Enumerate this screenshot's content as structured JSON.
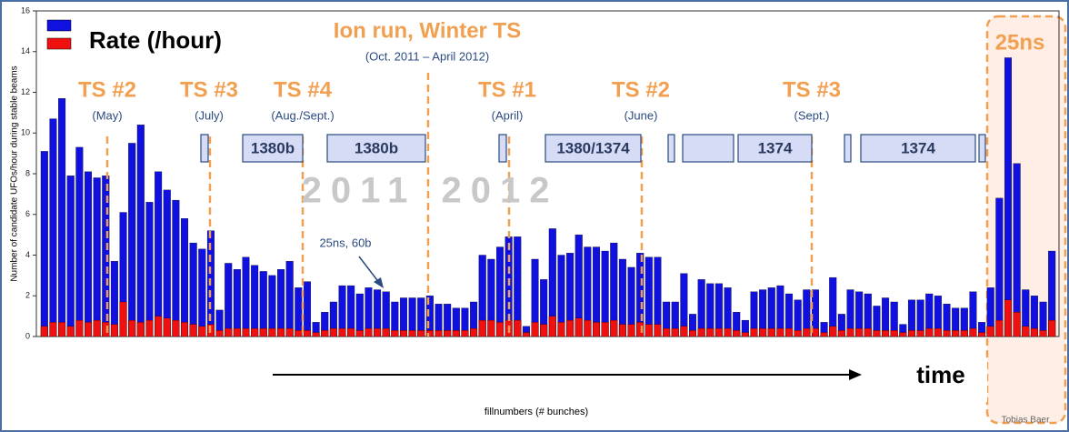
{
  "chart_data": {
    "type": "bar",
    "y_label": "Number of candidate UFOs/hour during stable beams",
    "x_label": "fillnumbers (# bunches)",
    "ylim": [
      0,
      16
    ],
    "yticks": [
      0,
      2,
      4,
      6,
      8,
      10,
      12,
      14,
      16
    ],
    "series": [
      {
        "name": "Rate (/hour)",
        "color": "#1010e0",
        "values": [
          9.1,
          10.7,
          11.7,
          7.9,
          9.3,
          8.1,
          7.8,
          7.9,
          3.7,
          6.1,
          9.5,
          10.4,
          6.6,
          8.1,
          7.2,
          6.7,
          5.8,
          4.6,
          4.3,
          5.2,
          1.3,
          3.6,
          3.3,
          3.9,
          3.5,
          3.2,
          3.0,
          3.3,
          3.7,
          2.4,
          2.7,
          0.7,
          1.2,
          1.7,
          2.5,
          2.5,
          2.1,
          2.4,
          2.3,
          2.2,
          1.7,
          1.9,
          1.9,
          1.9,
          2.0,
          1.6,
          1.6,
          1.4,
          1.4,
          1.7,
          4.0,
          3.8,
          4.4,
          4.9,
          4.9,
          0.5,
          3.8,
          2.8,
          5.3,
          4.0,
          4.1,
          5.0,
          4.4,
          4.4,
          4.2,
          4.6,
          3.8,
          3.4,
          4.1,
          3.9,
          3.9,
          1.7,
          1.7,
          3.1,
          1.1,
          2.8,
          2.6,
          2.6,
          2.4,
          1.2,
          0.8,
          2.2,
          2.3,
          2.4,
          2.5,
          2.1,
          1.8,
          2.3,
          2.3,
          0.7,
          2.9,
          1.1,
          2.3,
          2.2,
          2.1,
          1.5,
          1.9,
          1.7,
          0.6,
          1.8,
          1.8,
          2.1,
          2.0,
          1.6,
          1.4,
          1.4,
          2.2,
          0.7,
          2.4,
          6.8,
          13.7,
          8.5,
          2.3,
          2.0,
          1.7,
          4.2
        ]
      },
      {
        "color": "#f01010",
        "values": [
          0.5,
          0.7,
          0.7,
          0.5,
          0.8,
          0.7,
          0.8,
          0.7,
          0.6,
          1.7,
          0.8,
          0.7,
          0.8,
          1.0,
          0.9,
          0.8,
          0.7,
          0.6,
          0.5,
          0.6,
          0.3,
          0.4,
          0.4,
          0.4,
          0.4,
          0.4,
          0.4,
          0.4,
          0.4,
          0.3,
          0.3,
          0.2,
          0.3,
          0.4,
          0.4,
          0.4,
          0.3,
          0.4,
          0.4,
          0.4,
          0.3,
          0.3,
          0.3,
          0.3,
          0.3,
          0.3,
          0.3,
          0.3,
          0.3,
          0.4,
          0.8,
          0.8,
          0.7,
          0.8,
          0.8,
          0.2,
          0.7,
          0.6,
          1.0,
          0.7,
          0.8,
          0.9,
          0.8,
          0.7,
          0.7,
          0.8,
          0.6,
          0.6,
          0.7,
          0.6,
          0.6,
          0.4,
          0.4,
          0.5,
          0.3,
          0.4,
          0.4,
          0.4,
          0.4,
          0.3,
          0.2,
          0.4,
          0.4,
          0.4,
          0.4,
          0.4,
          0.3,
          0.4,
          0.4,
          0.2,
          0.5,
          0.3,
          0.4,
          0.4,
          0.4,
          0.3,
          0.3,
          0.3,
          0.2,
          0.3,
          0.3,
          0.4,
          0.4,
          0.3,
          0.3,
          0.3,
          0.4,
          0.2,
          0.5,
          0.8,
          1.8,
          1.2,
          0.5,
          0.4,
          0.3,
          0.8
        ]
      }
    ],
    "annotations": [
      "Ion run, Winter TS",
      "(Oct. 2011 – April 2012)",
      "25ns",
      "TS #2",
      "(May)",
      "TS #3",
      "(July)",
      "TS #4",
      "(Aug./Sept.)",
      "TS #1",
      "(April)",
      "TS #2",
      "(June)",
      "TS #3",
      "(Sept.)",
      "2011",
      "2012",
      "25ns, 60b",
      "time",
      "Tobias Baer"
    ],
    "fill_boxes": [
      "1380b",
      "1380b",
      "1380/1374",
      "1374",
      "1374"
    ]
  }
}
